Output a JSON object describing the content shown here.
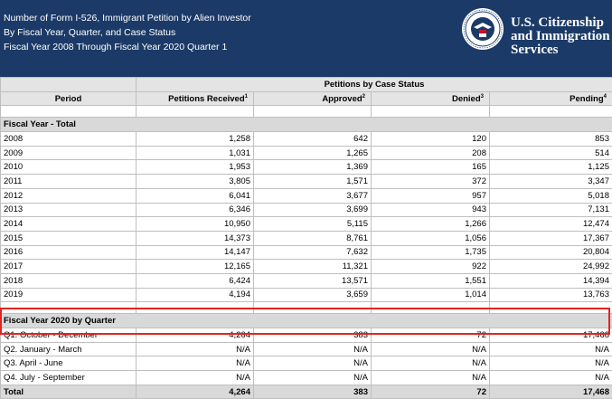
{
  "header": {
    "title_line1": "Number of Form I-526, Immigrant Petition by Alien Investor",
    "title_line2": "By Fiscal Year, Quarter, and Case Status",
    "title_line3": "Fiscal Year 2008 Through Fiscal Year 2020 Quarter 1",
    "agency_line1": "U.S. Citizenship",
    "agency_line2": "and Immigration",
    "agency_line3": "Services",
    "seal_icon": "dhs-seal-icon"
  },
  "table": {
    "group_header": "Petitions by Case Status",
    "col_period": "Period",
    "col_received": "Petitions Received",
    "col_received_note": "1",
    "col_approved": "Approved",
    "col_approved_note": "2",
    "col_denied": "Denied",
    "col_denied_note": "3",
    "col_pending": "Pending",
    "col_pending_note": "4",
    "section1": "Fiscal Year - Total",
    "years": [
      {
        "period": "2008",
        "received": "1,258",
        "approved": "642",
        "denied": "120",
        "pending": "853"
      },
      {
        "period": "2009",
        "received": "1,031",
        "approved": "1,265",
        "denied": "208",
        "pending": "514"
      },
      {
        "period": "2010",
        "received": "1,953",
        "approved": "1,369",
        "denied": "165",
        "pending": "1,125"
      },
      {
        "period": "2011",
        "received": "3,805",
        "approved": "1,571",
        "denied": "372",
        "pending": "3,347"
      },
      {
        "period": "2012",
        "received": "6,041",
        "approved": "3,677",
        "denied": "957",
        "pending": "5,018"
      },
      {
        "period": "2013",
        "received": "6,346",
        "approved": "3,699",
        "denied": "943",
        "pending": "7,131"
      },
      {
        "period": "2014",
        "received": "10,950",
        "approved": "5,115",
        "denied": "1,266",
        "pending": "12,474"
      },
      {
        "period": "2015",
        "received": "14,373",
        "approved": "8,761",
        "denied": "1,056",
        "pending": "17,367"
      },
      {
        "period": "2016",
        "received": "14,147",
        "approved": "7,632",
        "denied": "1,735",
        "pending": "20,804"
      },
      {
        "period": "2017",
        "received": "12,165",
        "approved": "11,321",
        "denied": "922",
        "pending": "24,992"
      },
      {
        "period": "2018",
        "received": "6,424",
        "approved": "13,571",
        "denied": "1,551",
        "pending": "14,394"
      },
      {
        "period": "2019",
        "received": "4,194",
        "approved": "3,659",
        "denied": "1,014",
        "pending": "13,763"
      }
    ],
    "section2": "Fiscal Year 2020 by Quarter",
    "quarters": [
      {
        "period": "Q1. October - December",
        "received": "4,264",
        "approved": "383",
        "denied": "72",
        "pending": "17,468"
      },
      {
        "period": "Q2. January - March",
        "received": "N/A",
        "approved": "N/A",
        "denied": "N/A",
        "pending": "N/A"
      },
      {
        "period": "Q3. April - June",
        "received": "N/A",
        "approved": "N/A",
        "denied": "N/A",
        "pending": "N/A"
      },
      {
        "period": "Q4. July - September",
        "received": "N/A",
        "approved": "N/A",
        "denied": "N/A",
        "pending": "N/A"
      }
    ],
    "total": {
      "period": "Total",
      "received": "4,264",
      "approved": "383",
      "denied": "72",
      "pending": "17,468"
    }
  },
  "colors": {
    "banner": "#1b3a67",
    "highlight": "#e32323",
    "header_fill": "#e4e4e4",
    "section_fill": "#d9d9d9"
  }
}
